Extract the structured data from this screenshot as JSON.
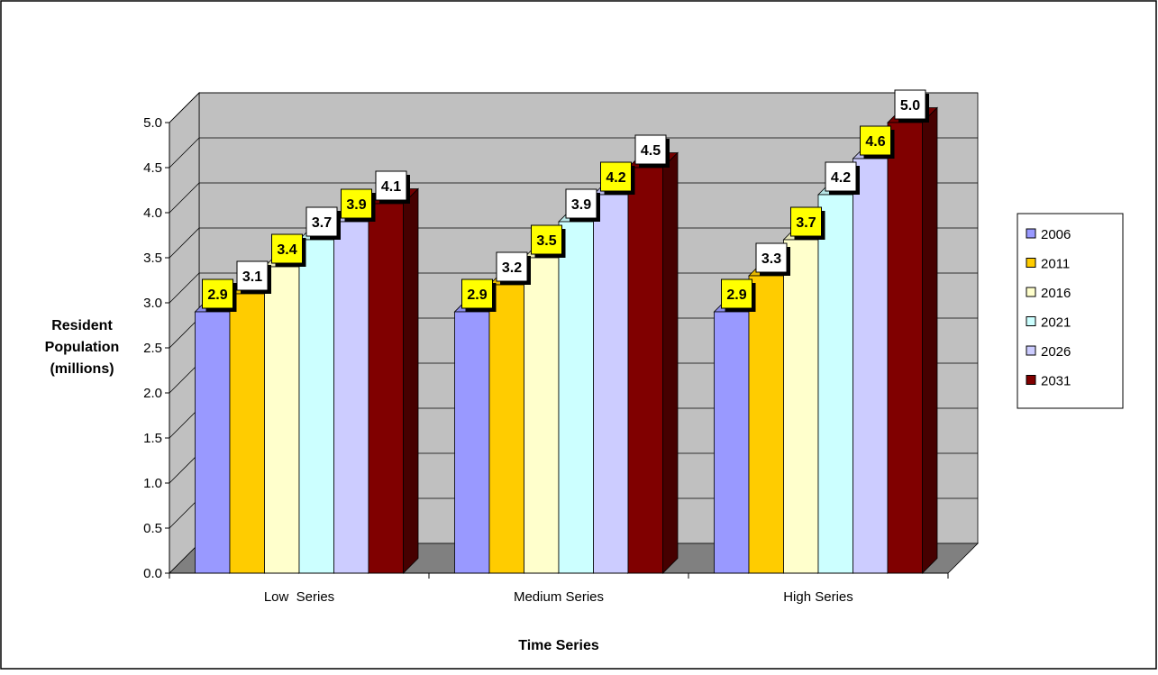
{
  "chart_data": {
    "type": "bar",
    "title": "",
    "xlabel": "Time Series",
    "ylabel_lines": [
      "Resident",
      "Population",
      "(millions)"
    ],
    "categories": [
      "Low  Series",
      "Medium Series",
      "High Series"
    ],
    "ylim": [
      0,
      5
    ],
    "yticks": [
      "0.0",
      "0.5",
      "1.0",
      "1.5",
      "2.0",
      "2.5",
      "3.0",
      "3.5",
      "4.0",
      "4.5",
      "5.0"
    ],
    "grid": true,
    "legend_position": "right",
    "series": [
      {
        "name": "2006",
        "color": "#9999ff",
        "label_bg": "#ffff00",
        "values": [
          2.9,
          2.9,
          2.9
        ]
      },
      {
        "name": "2011",
        "color": "#ffcc00",
        "label_bg": "#ffffff",
        "values": [
          3.1,
          3.2,
          3.3
        ]
      },
      {
        "name": "2016",
        "color": "#ffffcc",
        "label_bg": "#ffff00",
        "values": [
          3.4,
          3.5,
          3.7
        ]
      },
      {
        "name": "2021",
        "color": "#ccffff",
        "label_bg": "#ffffff",
        "values": [
          3.7,
          3.9,
          4.2
        ]
      },
      {
        "name": "2026",
        "color": "#ccccff",
        "label_bg": "#ffff00",
        "values": [
          3.9,
          4.2,
          4.6
        ]
      },
      {
        "name": "2031",
        "color": "#800000",
        "label_bg": "#ffffff",
        "values": [
          4.1,
          4.5,
          5.0
        ]
      }
    ],
    "data_labels": [
      [
        "2.9",
        "2.9",
        "2.9"
      ],
      [
        "3.1",
        "3.2",
        "3.3"
      ],
      [
        "3.4",
        "3.5",
        "3.7"
      ],
      [
        "3.7",
        "3.9",
        "4.2"
      ],
      [
        "3.9",
        "4.2",
        "4.6"
      ],
      [
        "4.1",
        "4.5",
        "5.0"
      ]
    ]
  }
}
